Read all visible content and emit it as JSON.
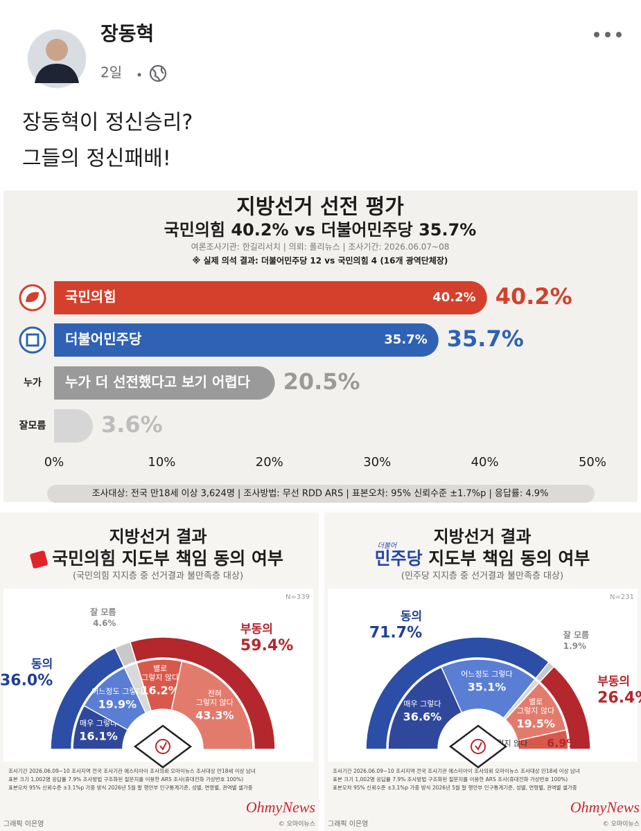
{
  "post": {
    "author": "장동혁",
    "time": "2일",
    "text": [
      "장동혁이 정신승리?",
      "그들의 정신패배!"
    ]
  },
  "chart_data": [
    {
      "type": "bar",
      "title": "지방선거 선전 평가",
      "subtitle": "국민의힘 40.2% vs 더불어민주당 35.7%",
      "source": "여론조사기관: 한길리서치 | 의뢰: 폴리뉴스 | 조사기간: 2026.06.07~08",
      "note": "※ 실제 의석 결과: 더불어민주당 12 vs 국민의힘 4 (16개 광역단체장)",
      "categories": [
        "국민의힘",
        "더불어민주당",
        "누가 더 선전했다고 보기 어렵다",
        null
      ],
      "row_labels": [
        null,
        null,
        "누가",
        "잘모름"
      ],
      "values": [
        40.2,
        35.7,
        20.5,
        3.6
      ],
      "value_labels": [
        "40.2%",
        "35.7%",
        "20.5%",
        "3.6%"
      ],
      "colors": [
        "#d4402c",
        "#2f62b4",
        "#9a9a9a",
        "#d6d6d6"
      ],
      "xlim": [
        0,
        50
      ],
      "xticks": [
        {
          "value": 0,
          "label": "0%"
        },
        {
          "value": 10,
          "label": "10%"
        },
        {
          "value": 20,
          "label": "20%"
        },
        {
          "value": 30,
          "label": "30%"
        },
        {
          "value": 40,
          "label": "40%"
        },
        {
          "value": 50,
          "label": "50%"
        }
      ],
      "footer": "조사대상: 전국 만18세 이상 3,624명 | 조사방법: 무선 RDD ARS | 표본오차: 95% 신뢰수준 ±1.7%p | 응답률: 4.9%"
    },
    {
      "type": "half-donut",
      "title": "지방선거 결과",
      "party": "국민의힘",
      "party_color": "#222222",
      "subtitle": "지도부 책임 동의 여부",
      "note": "(국민의힘 지지층 중 선거결과 불만족층 대상)",
      "n_label": "N=339",
      "groups": {
        "categories": [
          "동의",
          "잘 모름",
          "부동의"
        ],
        "values": [
          36.0,
          4.6,
          59.4
        ],
        "value_labels": [
          "36.0%",
          "4.6%",
          "59.4%"
        ],
        "colors": [
          "#2c4ea6",
          "#c9c9c9",
          "#b3272d"
        ]
      },
      "details": {
        "categories": [
          [
            "매우 그렇다"
          ],
          [
            "어느정도 그렇다"
          ],
          [
            "별로",
            "그렇지 않다"
          ],
          [
            "전혀",
            "그렇지 않다"
          ]
        ],
        "values": [
          16.1,
          19.9,
          16.2,
          43.3
        ],
        "value_labels": [
          "16.1%",
          "19.9%",
          "16.2%",
          "43.3%"
        ],
        "colors": [
          "#30489c",
          "#5a7ed4",
          "#d9584c",
          "#e37b6d"
        ]
      },
      "footnote": [
        "조사기간 2026.06.09~10  조사지역 전국  조사기관 에스티아이  조사의뢰 오마이뉴스  조사대상 만18세 이상 남녀",
        "표본 크기 1,002명  응답률 7.9%  조사방법 구조화된 질문지를 이용한 ARS 조사(휴대전화 가상번호 100%)",
        "표본오차 95% 신뢰수준 ±3.1%p  가중 방식 2026년 5월 말 행안부 인구통계기준, 성별, 연령별, 권역별 셀가중"
      ],
      "credit": "그래픽 이은영",
      "brand": "OhmyNews",
      "copyright": "© 오마이뉴스"
    },
    {
      "type": "half-donut",
      "title": "지방선거 결과",
      "party_prefix": "더불어",
      "party": "민주당",
      "party_color": "#2347a8",
      "subtitle": "지도부 책임 동의 여부",
      "note": "(민주당 지지층 중 선거결과 불만족층 대상)",
      "n_label": "N=231",
      "groups": {
        "categories": [
          "동의",
          "잘 모름",
          "부동의"
        ],
        "values": [
          71.7,
          1.9,
          26.4
        ],
        "value_labels": [
          "71.7%",
          "1.9%",
          "26.4%"
        ],
        "colors": [
          "#2c4ea6",
          "#c9c9c9",
          "#b3272d"
        ]
      },
      "details": {
        "categories": [
          [
            "매우 그렇다"
          ],
          [
            "어느정도 그렇다"
          ],
          [
            "별로",
            "그렇지 않다"
          ],
          [
            "전혀 그렇지 않다"
          ]
        ],
        "values": [
          36.6,
          35.1,
          19.5,
          6.9
        ],
        "value_labels": [
          "36.6%",
          "35.1%",
          "19.5%",
          "6.9%"
        ],
        "colors": [
          "#30489c",
          "#5a7ed4",
          "#e37b6d",
          "#d9584c"
        ]
      },
      "footnote": [
        "조사기간 2026.06.09~10  조사지역 전국  조사기관 에스티아이  조사의뢰 오마이뉴스  조사대상 만18세 이상 남녀",
        "표본 크기 1,002명  응답률 7.9%  조사방법 구조화된 질문지를 이용한 ARS 조사(휴대전화 가상번호 100%)",
        "표본오차 95% 신뢰수준 ±3.1%p  가중 방식 2026년 5월 말 행안부 인구통계기준, 성별, 연령별, 권역별 셀가중"
      ],
      "credit": "그래픽 이은영",
      "brand": "OhmyNews",
      "copyright": "© 오마이뉴스"
    }
  ]
}
